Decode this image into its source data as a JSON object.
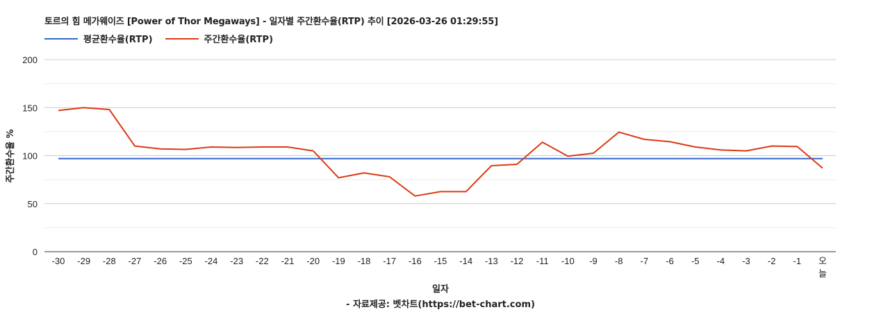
{
  "title": "토르의 힘 메가웨이즈 [Power of Thor Megaways] - 일자별 주간환수율(RTP) 추이 [2026-03-26 01:29:55]",
  "legend": [
    {
      "label": "평균환수율(RTP)",
      "color": "#3366cc"
    },
    {
      "label": "주간환수율(RTP)",
      "color": "#dc3912"
    }
  ],
  "xlabel": "일자",
  "ylabel": "주간환수율 %",
  "source": "- 자료제공: 벳차트(https://bet-chart.com)",
  "chart_data": {
    "type": "line",
    "title": "토르의 힘 메가웨이즈 [Power of Thor Megaways] - 일자별 주간환수율(RTP) 추이 [2026-03-26 01:29:55]",
    "xlabel": "일자",
    "ylabel": "주간환수율 %",
    "ylim": [
      0,
      200
    ],
    "yticks": [
      0,
      50,
      100,
      150,
      200
    ],
    "grid": true,
    "legend_position": "top-left",
    "categories": [
      "-30",
      "-29",
      "-28",
      "-27",
      "-26",
      "-25",
      "-24",
      "-23",
      "-22",
      "-21",
      "-20",
      "-19",
      "-18",
      "-17",
      "-16",
      "-15",
      "-14",
      "-13",
      "-12",
      "-11",
      "-10",
      "-9",
      "-8",
      "-7",
      "-6",
      "-5",
      "-4",
      "-3",
      "-2",
      "-1",
      "오늘"
    ],
    "series": [
      {
        "name": "평균환수율(RTP)",
        "color": "#3366cc",
        "values": [
          97,
          97,
          97,
          97,
          97,
          97,
          97,
          97,
          97,
          97,
          97,
          97,
          97,
          97,
          97,
          97,
          97,
          97,
          97,
          97,
          97,
          97,
          97,
          97,
          97,
          97,
          97,
          97,
          97,
          97,
          97
        ]
      },
      {
        "name": "주간환수율(RTP)",
        "color": "#dc3912",
        "values": [
          147,
          150,
          148,
          110,
          107,
          106.5,
          109,
          108.5,
          109,
          109,
          105,
          77,
          82,
          78,
          58,
          62.5,
          62.5,
          89.5,
          91,
          114,
          99.5,
          102.5,
          124.5,
          117,
          114.5,
          109,
          106,
          105,
          110,
          109.5,
          87
        ]
      }
    ]
  }
}
